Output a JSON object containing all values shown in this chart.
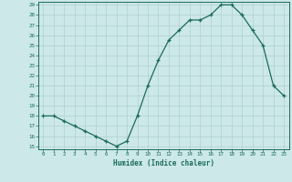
{
  "x": [
    0,
    1,
    2,
    3,
    4,
    5,
    6,
    7,
    8,
    9,
    10,
    11,
    12,
    13,
    14,
    15,
    16,
    17,
    18,
    19,
    20,
    21,
    22,
    23
  ],
  "y": [
    18,
    18,
    17.5,
    17,
    16.5,
    16,
    15.5,
    15,
    15.5,
    18,
    21,
    23.5,
    25.5,
    26.5,
    27.5,
    27.5,
    28,
    29,
    29,
    28,
    26.5,
    25,
    21,
    20
  ],
  "xlabel": "Humidex (Indice chaleur)",
  "ylim": [
    15,
    29
  ],
  "xlim": [
    -0.5,
    23.5
  ],
  "yticks": [
    15,
    16,
    17,
    18,
    19,
    20,
    21,
    22,
    23,
    24,
    25,
    26,
    27,
    28,
    29
  ],
  "xticks": [
    0,
    1,
    2,
    3,
    4,
    5,
    6,
    7,
    8,
    9,
    10,
    11,
    12,
    13,
    14,
    15,
    16,
    17,
    18,
    19,
    20,
    21,
    22,
    23
  ],
  "line_color": "#1a6b5a",
  "bg_color": "#cce8e8",
  "grid_color": "#b0d0d0",
  "tick_color": "#1a6b5a",
  "xlabel_color": "#1a6b5a",
  "marker": "+"
}
